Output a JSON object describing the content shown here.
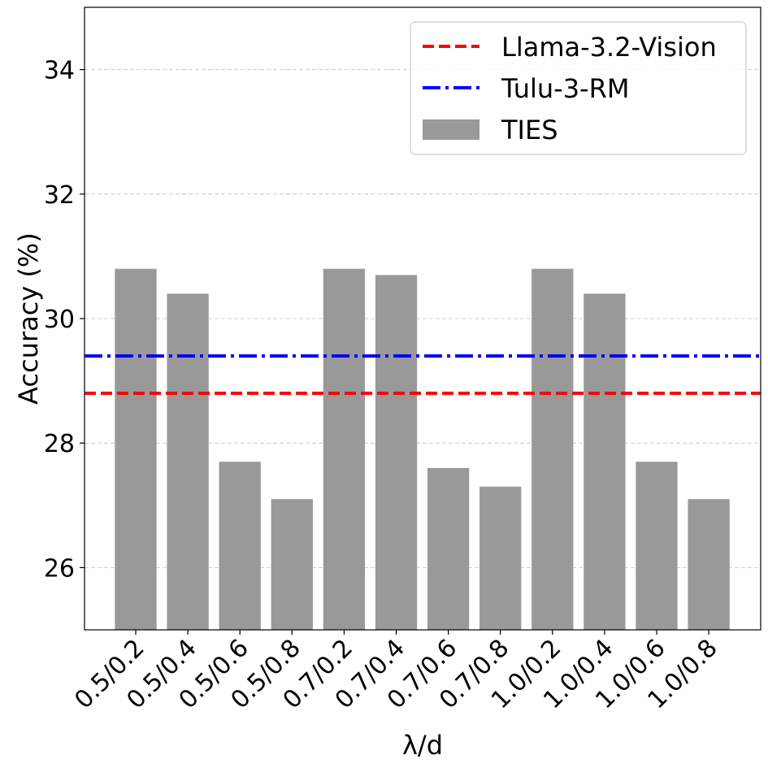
{
  "chart_data": {
    "type": "bar",
    "xlabel": "λ/d",
    "ylabel": "Accuracy (%)",
    "ylim": [
      25,
      35
    ],
    "yticks": [
      26,
      28,
      30,
      32,
      34
    ],
    "grid": "y-dashed",
    "legend_position": "top-right",
    "categories": [
      "0.5/0.2",
      "0.5/0.4",
      "0.5/0.6",
      "0.5/0.8",
      "0.7/0.2",
      "0.7/0.4",
      "0.7/0.6",
      "0.7/0.8",
      "1.0/0.2",
      "1.0/0.4",
      "1.0/0.6",
      "1.0/0.8"
    ],
    "series": [
      {
        "name": "TIES",
        "kind": "bar",
        "color": "#999999",
        "values": [
          30.8,
          30.4,
          27.7,
          27.1,
          30.8,
          30.7,
          27.6,
          27.3,
          30.8,
          30.4,
          27.7,
          27.1
        ]
      }
    ],
    "reference_lines": [
      {
        "name": "Llama-3.2-Vision",
        "value": 28.8,
        "color": "#ff0000",
        "style": "dashed"
      },
      {
        "name": "Tulu-3-RM",
        "value": 29.4,
        "color": "#0000ff",
        "style": "dashdot"
      }
    ],
    "legend": [
      "Llama-3.2-Vision",
      "Tulu-3-RM",
      "TIES"
    ]
  }
}
